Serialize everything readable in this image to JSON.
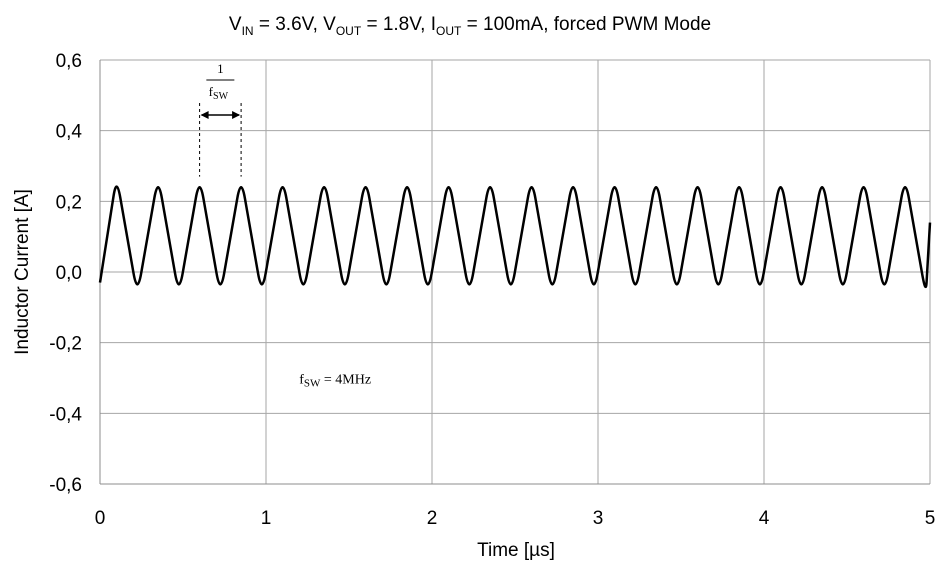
{
  "chart_data": {
    "type": "line",
    "title": {
      "v_in_main": "V",
      "v_in_sub": "IN",
      "v_in_val": " = 3.6V, ",
      "v_out_main": "V",
      "v_out_sub": "OUT",
      "v_out_val": " = 1.8V, ",
      "i_out_main": "I",
      "i_out_sub": "OUT",
      "i_out_val": " = 100mA, forced PWM Mode"
    },
    "xlabel": "Time  [µs]",
    "ylabel": "Inductor Current  [A]",
    "xlim": [
      0,
      5
    ],
    "ylim": [
      -0.6,
      0.6
    ],
    "x_ticks": [
      "0",
      "1",
      "2",
      "3",
      "4",
      "5"
    ],
    "y_ticks": [
      "0,6",
      "0,4",
      "0,2",
      "0,0",
      "-0,2",
      "-0,4",
      "-0,6"
    ],
    "grid": true,
    "series": [
      {
        "x": [
          0,
          0.1,
          0.225,
          0.35,
          0.475,
          0.6,
          0.725,
          0.85,
          0.975,
          1.1,
          1.225,
          1.35,
          1.475,
          1.6,
          1.725,
          1.85,
          1.975,
          2.1,
          2.225,
          2.35,
          2.475,
          2.6,
          2.725,
          2.85,
          2.975,
          3.1,
          3.225,
          3.35,
          3.475,
          3.6,
          3.725,
          3.85,
          3.975,
          4.1,
          4.225,
          4.35,
          4.475,
          4.6,
          4.725,
          4.85,
          4.975,
          5.0
        ],
        "y": [
          -0.03,
          0.27,
          -0.065,
          0.27,
          -0.065,
          0.27,
          -0.065,
          0.27,
          -0.065,
          0.27,
          -0.065,
          0.27,
          -0.065,
          0.27,
          -0.065,
          0.27,
          -0.065,
          0.27,
          -0.065,
          0.27,
          -0.065,
          0.27,
          -0.065,
          0.27,
          -0.065,
          0.27,
          -0.065,
          0.27,
          -0.065,
          0.27,
          -0.065,
          0.27,
          -0.065,
          0.27,
          -0.065,
          0.27,
          -0.065,
          0.27,
          -0.065,
          0.27,
          -0.065,
          0.14
        ],
        "color": "#000000"
      }
    ],
    "annotations": {
      "period_numerator": "1",
      "period_denominator_main": "f",
      "period_denominator_sub": "SW",
      "period_x": [
        0.6,
        0.85
      ],
      "fsw_main": "f",
      "fsw_sub": "SW",
      "fsw_value": " = 4MHz",
      "fsw_x": 1.2,
      "fsw_y": -0.315
    }
  }
}
